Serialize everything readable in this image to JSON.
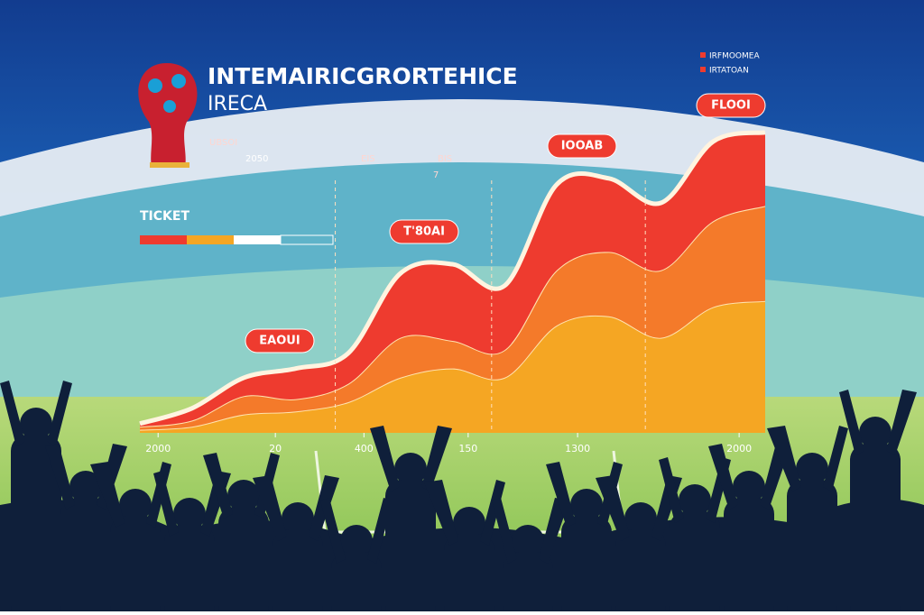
{
  "chart_data": {
    "type": "area",
    "title": "INTEMAIRICGRORTEHICE",
    "subtitle": "IRECA",
    "stats": [
      [
        "UBSOI",
        "2050"
      ],
      [
        "EIS"
      ],
      [
        "BIS"
      ],
      [
        "7"
      ]
    ],
    "ticket_label": "TICKET",
    "legend": [
      "IRFMOOMEA",
      "IRTATOAN"
    ],
    "annotations": [
      "EAOUI",
      "T'80AI",
      "IOOAB",
      "FLOOI"
    ],
    "stacked": true,
    "x": [
      0,
      1,
      2,
      3,
      4,
      5,
      6,
      7,
      8,
      9,
      10,
      11,
      12
    ],
    "xlim": [
      0,
      12
    ],
    "xticks": [
      {
        "value": 0.35,
        "label": "2000"
      },
      {
        "value": 2.6,
        "label": "20"
      },
      {
        "value": 4.3,
        "label": "400"
      },
      {
        "value": 6.3,
        "label": "150"
      },
      {
        "value": 8.4,
        "label": "1300"
      },
      {
        "value": 11.5,
        "label": "2000"
      }
    ],
    "ylim": [
      0,
      100
    ],
    "series": [
      {
        "color": "#f5a623",
        "values": [
          1,
          2,
          6,
          7,
          10,
          18,
          21,
          18,
          35,
          38,
          31,
          41,
          43
        ]
      },
      {
        "color": "#f47a2a",
        "values": [
          1,
          2,
          6,
          4,
          6,
          13,
          9,
          9,
          18,
          21,
          22,
          28,
          31
        ]
      },
      {
        "color": "#ee3b2f",
        "values": [
          1,
          4,
          6,
          10,
          10,
          21,
          25,
          21,
          28,
          24,
          22,
          26,
          24
        ]
      }
    ]
  }
}
